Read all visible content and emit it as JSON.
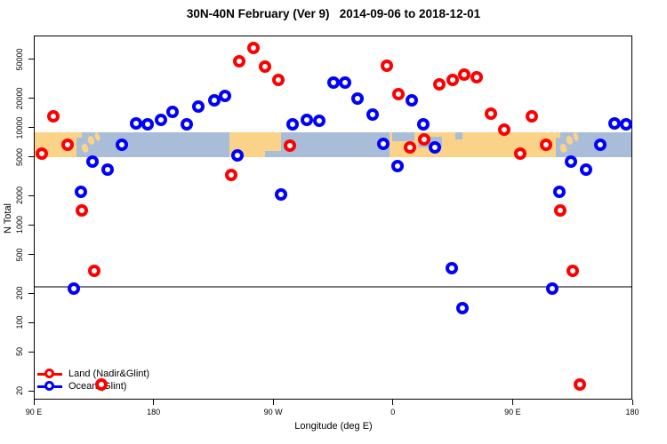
{
  "title": "30N-40N February (Ver 9)   2014-09-06 to 2018-12-01",
  "chart_data": {
    "type": "scatter",
    "title": "30N-40N February (Ver 9)   2014-09-06 to 2018-12-01",
    "x_axis": {
      "label": "Longitude (deg E)",
      "note": "axis spans 450 deg starting at 90E, wrapping past 180 and 0; rightmost 90 deg repeats the 90E-180 data",
      "span_deg": 450,
      "ticks": [
        {
          "t": 0,
          "label": "90 E"
        },
        {
          "t": 90,
          "label": "180"
        },
        {
          "t": 180,
          "label": "90 W"
        },
        {
          "t": 270,
          "label": "0"
        },
        {
          "t": 360,
          "label": "90 E"
        },
        {
          "t": 450,
          "label": "180"
        }
      ]
    },
    "y_axis": {
      "label": "N Total",
      "scale": "log",
      "ticks": [
        20,
        50,
        100,
        200,
        500,
        1000,
        2000,
        5000,
        10000,
        20000,
        50000
      ],
      "range_shown": [
        15,
        88000
      ]
    },
    "reference_line": {
      "n": 233,
      "color": "#7a7a7a"
    },
    "legend": {
      "items": [
        {
          "label": "Land (Nadir&Glint)",
          "color": "#ff0000"
        },
        {
          "label": "Ocean (Glint)",
          "color": "#0000ff"
        }
      ]
    },
    "series": [
      {
        "name": "Land (Nadir&Glint)",
        "color": "#ff0000",
        "points": [
          {
            "t": 6,
            "lon": "96E",
            "n": 5400
          },
          {
            "t": 14.7,
            "lon": "105E",
            "n": 13000
          },
          {
            "t": 25.3,
            "lon": "115E",
            "n": 6700
          },
          {
            "t": 36,
            "lon": "126E",
            "n": 1400
          },
          {
            "t": 45.3,
            "lon": "135E",
            "n": 340
          },
          {
            "t": 50.7,
            "lon": "141E",
            "n": 23
          },
          {
            "t": 148.7,
            "lon": "121W",
            "n": 3300
          },
          {
            "t": 154.7,
            "lon": "115W",
            "n": 48000
          },
          {
            "t": 165.3,
            "lon": "105W",
            "n": 66000
          },
          {
            "t": 174,
            "lon": "96W",
            "n": 42000
          },
          {
            "t": 184,
            "lon": "86W",
            "n": 31000
          },
          {
            "t": 192.7,
            "lon": "77W",
            "n": 6500
          },
          {
            "t": 265.3,
            "lon": "5W",
            "n": 43000
          },
          {
            "t": 274,
            "lon": "4E",
            "n": 22000
          },
          {
            "t": 282.7,
            "lon": "13E",
            "n": 6250
          },
          {
            "t": 293.3,
            "lon": "23E",
            "n": 7550
          },
          {
            "t": 304.7,
            "lon": "35E",
            "n": 28000
          },
          {
            "t": 314.7,
            "lon": "45E",
            "n": 31000
          },
          {
            "t": 323.3,
            "lon": "53E",
            "n": 35000
          },
          {
            "t": 333.3,
            "lon": "63E",
            "n": 33000
          },
          {
            "t": 344,
            "lon": "74E",
            "n": 14000
          },
          {
            "t": 354,
            "lon": "84E",
            "n": 9500
          },
          {
            "t": 366,
            "lon": "96E",
            "n": 5400
          },
          {
            "t": 374.7,
            "lon": "105E",
            "n": 13000
          },
          {
            "t": 385.3,
            "lon": "115E",
            "n": 6700
          },
          {
            "t": 396,
            "lon": "126E",
            "n": 1400
          },
          {
            "t": 405.3,
            "lon": "135E",
            "n": 340
          },
          {
            "t": 410.7,
            "lon": "141E",
            "n": 23
          }
        ]
      },
      {
        "name": "Ocean (Glint)",
        "color": "#0000ff",
        "points": [
          {
            "t": 30,
            "lon": "120E",
            "n": 225
          },
          {
            "t": 35.3,
            "lon": "125E",
            "n": 2200
          },
          {
            "t": 44,
            "lon": "134E",
            "n": 4500
          },
          {
            "t": 55.3,
            "lon": "145E",
            "n": 3700
          },
          {
            "t": 66,
            "lon": "156E",
            "n": 6700
          },
          {
            "t": 76.7,
            "lon": "167E",
            "n": 11000
          },
          {
            "t": 85.3,
            "lon": "175E",
            "n": 10800
          },
          {
            "t": 95.3,
            "lon": "175W",
            "n": 12000
          },
          {
            "t": 104,
            "lon": "166W",
            "n": 14500
          },
          {
            "t": 115.3,
            "lon": "155W",
            "n": 10800
          },
          {
            "t": 124,
            "lon": "146W",
            "n": 16400
          },
          {
            "t": 136,
            "lon": "134W",
            "n": 19000
          },
          {
            "t": 144,
            "lon": "126W",
            "n": 21000
          },
          {
            "t": 153.3,
            "lon": "117W",
            "n": 5200
          },
          {
            "t": 186,
            "lon": "84W",
            "n": 2050
          },
          {
            "t": 194.7,
            "lon": "75W",
            "n": 10800
          },
          {
            "t": 205.3,
            "lon": "65W",
            "n": 12000
          },
          {
            "t": 214.7,
            "lon": "55W",
            "n": 11700
          },
          {
            "t": 225.3,
            "lon": "45W",
            "n": 29000
          },
          {
            "t": 234,
            "lon": "36W",
            "n": 29000
          },
          {
            "t": 243.3,
            "lon": "27W",
            "n": 19800
          },
          {
            "t": 254.7,
            "lon": "15W",
            "n": 13600
          },
          {
            "t": 262.7,
            "lon": "7W",
            "n": 6800
          },
          {
            "t": 273.3,
            "lon": "3E",
            "n": 4000
          },
          {
            "t": 284,
            "lon": "14E",
            "n": 19000
          },
          {
            "t": 292.7,
            "lon": "23E",
            "n": 10800
          },
          {
            "t": 301.3,
            "lon": "31E",
            "n": 6250
          },
          {
            "t": 314,
            "lon": "44E",
            "n": 360
          },
          {
            "t": 322,
            "lon": "52E",
            "n": 140
          },
          {
            "t": 390,
            "lon": "120E",
            "n": 225
          },
          {
            "t": 395.3,
            "lon": "125E",
            "n": 2200
          },
          {
            "t": 404,
            "lon": "134E",
            "n": 4500
          },
          {
            "t": 415.3,
            "lon": "145E",
            "n": 3700
          },
          {
            "t": 426,
            "lon": "156E",
            "n": 6700
          },
          {
            "t": 436.7,
            "lon": "167E",
            "n": 11000
          },
          {
            "t": 445.3,
            "lon": "175E",
            "n": 10800
          }
        ]
      }
    ],
    "map_band": {
      "n_top": 8900,
      "n_bottom": 5000,
      "ocean_color": "#a9bdd9",
      "land_color": "#fbd388",
      "land": [
        {
          "t0": 0,
          "t1": 32,
          "y0": 0,
          "y1": 1
        },
        {
          "t0": 31.5,
          "t1": 36,
          "y0": 0,
          "y1": 0.22
        },
        {
          "t0": 36,
          "t1": 40.5,
          "y0": 0.45,
          "y1": 0.8,
          "island": true
        },
        {
          "t0": 40.5,
          "t1": 45.5,
          "y0": 0.12,
          "y1": 0.5,
          "island": true
        },
        {
          "t0": 46,
          "t1": 49.5,
          "y0": 0,
          "y1": 0.35,
          "island": true
        },
        {
          "t0": 147,
          "t1": 186,
          "y0": 0,
          "y1": 1
        },
        {
          "t0": 267.5,
          "t1": 392.5,
          "y0": 0,
          "y1": 1
        },
        {
          "t0": 391.5,
          "t1": 396,
          "y0": 0,
          "y1": 0.22
        },
        {
          "t0": 396,
          "t1": 400.5,
          "y0": 0.45,
          "y1": 0.8,
          "island": true
        },
        {
          "t0": 400.5,
          "t1": 405.5,
          "y0": 0.12,
          "y1": 0.5,
          "island": true
        },
        {
          "t0": 406,
          "t1": 409.5,
          "y0": 0,
          "y1": 0.35,
          "island": true
        }
      ],
      "sea": [
        {
          "t0": 174,
          "t1": 186,
          "y0": 0.75,
          "y1": 1
        },
        {
          "t0": 269.5,
          "t1": 286,
          "y0": 0,
          "y1": 0.36
        },
        {
          "t0": 288.9,
          "t1": 307,
          "y0": 0.18,
          "y1": 0.6
        },
        {
          "t0": 317,
          "t1": 322.5,
          "y0": 0,
          "y1": 0.3
        }
      ]
    }
  }
}
